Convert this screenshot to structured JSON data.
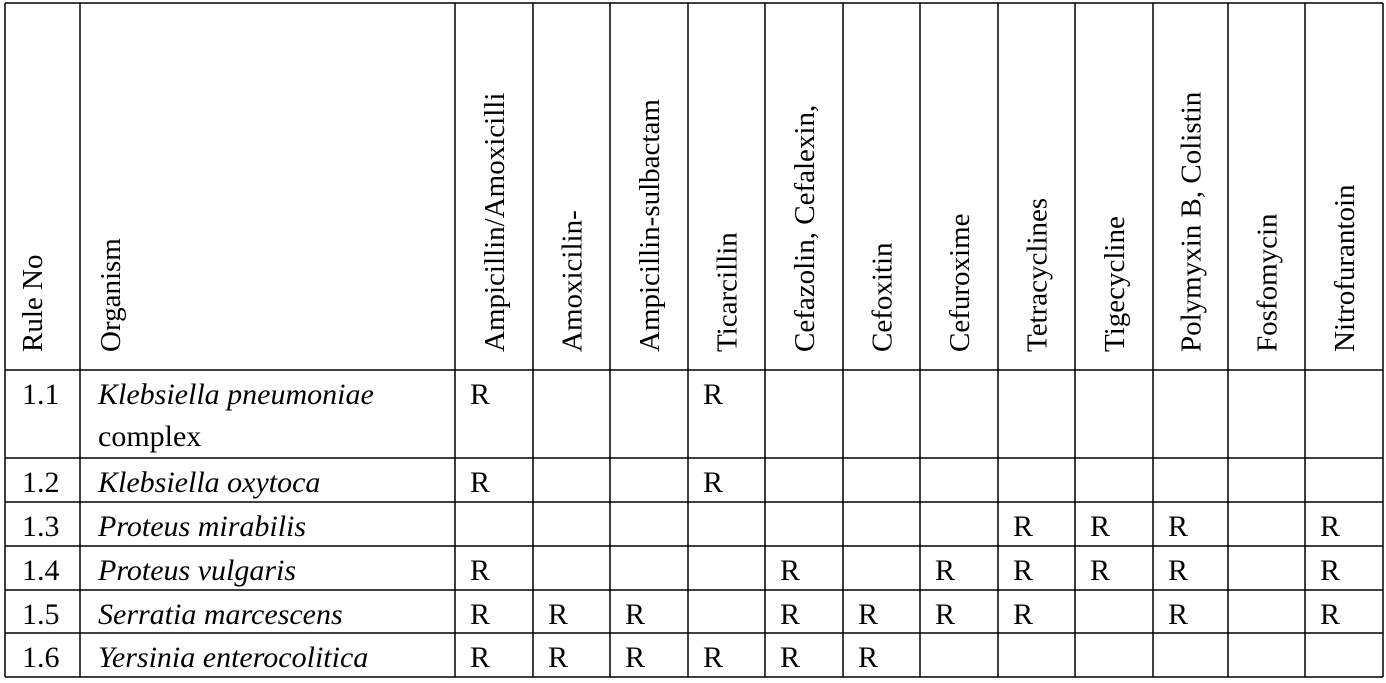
{
  "table": {
    "header": [
      "Rule No",
      "Organism",
      "Ampicillin/Amoxicilli",
      "Amoxicilin-",
      "Ampicillin-sulbactam",
      "Ticarcillin",
      "Cefazolin, Cefalexin,",
      "Cefoxitin",
      "Cefuroxime",
      "Tetracyclines",
      "Tigecycline",
      "Polymyxin B, Colistin",
      "Fosfomycin",
      "Nitrofurantoin"
    ],
    "rows": [
      {
        "rule": "1.1",
        "organism": "Klebsiella pneumoniae",
        "organism_note": "complex",
        "cells": [
          "R",
          null,
          null,
          "R",
          null,
          null,
          null,
          null,
          null,
          null,
          null,
          null
        ]
      },
      {
        "rule": "1.2",
        "organism": "Klebsiella oxytoca",
        "cells": [
          "R",
          null,
          null,
          "R",
          null,
          null,
          null,
          null,
          null,
          null,
          null,
          null
        ]
      },
      {
        "rule": "1.3",
        "organism": "Proteus mirabilis",
        "cells": [
          null,
          null,
          null,
          null,
          null,
          null,
          null,
          "R",
          "R",
          "R",
          null,
          "R"
        ]
      },
      {
        "rule": "1.4",
        "organism": "Proteus vulgaris",
        "cells": [
          "R",
          null,
          null,
          null,
          "R",
          null,
          "R",
          "R",
          "R",
          "R",
          null,
          "R"
        ]
      },
      {
        "rule": "1.5",
        "organism": "Serratia  marcescens",
        "cells": [
          "R",
          "R",
          "R",
          null,
          "R",
          "R",
          "R",
          "R",
          null,
          "R",
          null,
          "R"
        ]
      },
      {
        "rule": "1.6",
        "organism": "Yersinia enterocolitica",
        "cells": [
          "R",
          "R",
          "R",
          "R",
          "R",
          "R",
          null,
          null,
          null,
          null,
          null,
          null
        ]
      }
    ]
  }
}
